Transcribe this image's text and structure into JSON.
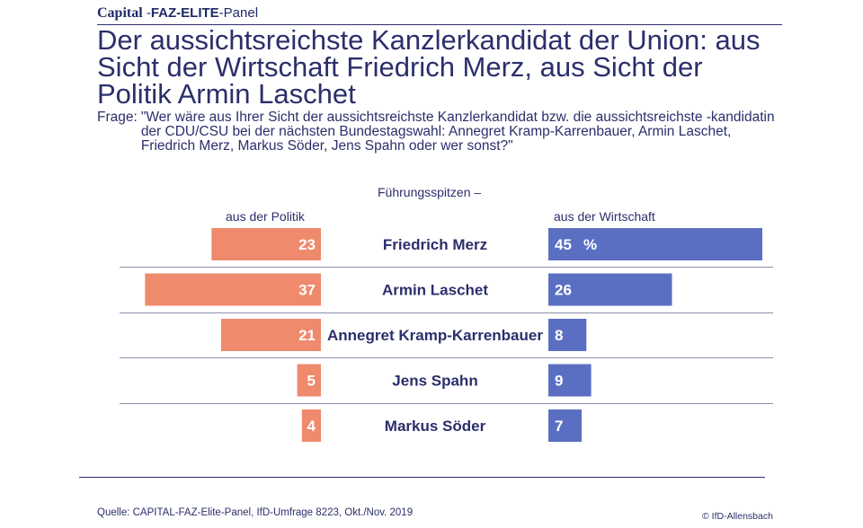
{
  "header": {
    "brand_capital": "Capital",
    "brand_sep1": " -",
    "brand_faz": "FAZ-ELITE",
    "brand_sep2": "-Panel"
  },
  "title": "Der aussichtsreichste Kanzlerkandidat der Union: aus Sicht der Wirtschaft Friedrich Merz, aus Sicht der Politik Armin Laschet",
  "question_label": "Frage:",
  "question_text": "\"Wer wäre aus Ihrer Sicht der aussichtsreichste Kanzlerkandidat bzw. die aussichtsreichste -kandidatin der CDU/CSU bei der nächsten Bundestagswahl: Annegret Kramp-Karrenbauer, Armin Laschet, Friedrich Merz, Markus Söder, Jens Spahn oder wer sonst?\"",
  "chart_data": {
    "type": "bar",
    "subtitle": "Führungsspitzen –",
    "categories": [
      "Friedrich Merz",
      "Armin Laschet",
      "Annegret Kramp-Karrenbauer",
      "Jens Spahn",
      "Markus Söder"
    ],
    "series": [
      {
        "name": "aus der Politik",
        "values": [
          23,
          37,
          21,
          5,
          4
        ],
        "color": "#f08a6c"
      },
      {
        "name": "aus der Wirtschaft",
        "values": [
          45,
          26,
          8,
          9,
          7
        ],
        "color": "#5b6fc2"
      }
    ],
    "unit_label": "%",
    "xlim": [
      0,
      45
    ]
  },
  "footer": {
    "source": "Quelle: CAPITAL-FAZ-Elite-Panel, IfD-Umfrage 8223, Okt./Nov. 2019",
    "copyright": "© IfD-Allensbach"
  }
}
